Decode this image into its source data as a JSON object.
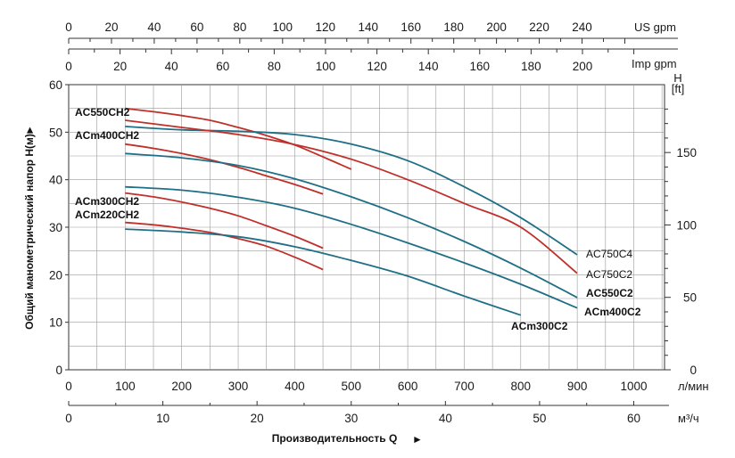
{
  "chart_data": {
    "type": "line",
    "xlabel": "Производительность Q",
    "ylabel": "Общий манометрический напор  H(м)",
    "x_unit": "л/мин",
    "y_unit": "м",
    "xlim": [
      0,
      1000
    ],
    "ylim": [
      0,
      60
    ],
    "x_ticks": [
      "0",
      "100",
      "200",
      "300",
      "400",
      "500",
      "600",
      "700",
      "800",
      "900",
      "1000"
    ],
    "y_ticks": [
      "0",
      "10",
      "20",
      "30",
      "40",
      "50",
      "60"
    ],
    "secondary_axes": {
      "us_gpm": {
        "label": "US gpm",
        "ticks": [
          "0",
          "20",
          "40",
          "60",
          "80",
          "100",
          "120",
          "140",
          "160",
          "180",
          "200",
          "220",
          "240"
        ]
      },
      "imp_gpm": {
        "label": "Imp gpm",
        "ticks": [
          "0",
          "20",
          "40",
          "60",
          "80",
          "100",
          "120",
          "140",
          "160",
          "180",
          "200"
        ]
      },
      "m3h": {
        "label": "м³/ч",
        "ticks": [
          "0",
          "10",
          "20",
          "30",
          "40",
          "50",
          "60"
        ]
      },
      "feet": {
        "label": "H\n[ft]",
        "ticks": [
          "0",
          "50",
          "100",
          "150"
        ]
      }
    },
    "grid": true,
    "series": [
      {
        "name": "AC550CH2",
        "color": "#c0302a",
        "x": [
          100,
          150,
          200,
          250,
          300,
          350,
          400,
          450,
          500
        ],
        "y": [
          55,
          54.3,
          53.5,
          52.5,
          51,
          49.3,
          47.3,
          44.8,
          42.2
        ]
      },
      {
        "name": "ACm400CH2",
        "color": "#c0302a",
        "x": [
          100,
          150,
          200,
          250,
          300,
          350,
          400,
          450
        ],
        "y": [
          47.5,
          46.6,
          45.5,
          44.2,
          42.6,
          40.8,
          39,
          37
        ]
      },
      {
        "name": "ACm300CH2",
        "color": "#c0302a",
        "x": [
          100,
          150,
          200,
          250,
          300,
          350,
          400,
          450
        ],
        "y": [
          37.2,
          36.4,
          35.3,
          34,
          32.4,
          30.3,
          28.1,
          25.6
        ]
      },
      {
        "name": "ACm220CH2",
        "color": "#c0302a",
        "x": [
          100,
          150,
          200,
          250,
          300,
          350,
          400,
          450
        ],
        "y": [
          31,
          30.5,
          29.8,
          28.9,
          27.6,
          26,
          23.7,
          21.1
        ]
      },
      {
        "name": "AC750C4",
        "color": "#1f6f86",
        "x": [
          100,
          200,
          300,
          400,
          500,
          600,
          700,
          800,
          900
        ],
        "y": [
          51.2,
          50.5,
          50.2,
          49.5,
          47.5,
          44,
          38.5,
          32,
          24.2
        ]
      },
      {
        "name": "AC750C2",
        "color": "#c0302a",
        "x": [
          100,
          200,
          300,
          400,
          500,
          600,
          700,
          800,
          900
        ],
        "y": [
          52.5,
          51,
          49.5,
          47.4,
          44.3,
          40,
          35,
          30,
          20.3
        ]
      },
      {
        "name": "AC550C2",
        "color": "#1f6f86",
        "x": [
          100,
          200,
          300,
          400,
          500,
          600,
          700,
          800,
          900
        ],
        "y": [
          45.5,
          44.6,
          43,
          40.2,
          36.4,
          32,
          27,
          21.4,
          15.2
        ]
      },
      {
        "name": "ACm400C2",
        "color": "#1f6f86",
        "x": [
          100,
          200,
          300,
          400,
          500,
          600,
          700,
          800,
          900
        ],
        "y": [
          38.5,
          37.8,
          36.3,
          34,
          30.6,
          26.7,
          22.5,
          18,
          13
        ]
      },
      {
        "name": "ACm300C2",
        "color": "#1f6f86",
        "x": [
          100,
          200,
          300,
          400,
          500,
          600,
          700,
          800
        ],
        "y": [
          29.6,
          29,
          28,
          25.9,
          23,
          19.7,
          15.5,
          11.5
        ]
      }
    ]
  }
}
